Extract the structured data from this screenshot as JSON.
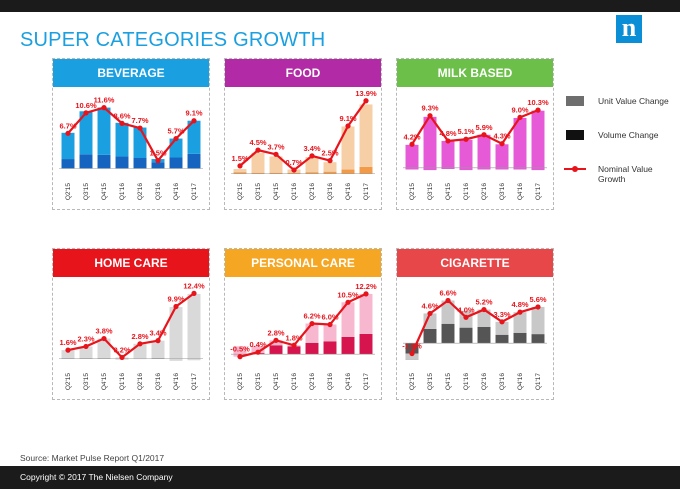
{
  "page_title": "SUPER CATEGORIES GROWTH",
  "logo_letter": "n",
  "source": "Source: Market Pulse Report Q1/2017",
  "footer": "Copyright © 2017 The Nielsen Company",
  "legend": {
    "unit_value": "Unit Value Change",
    "volume": "Volume Change",
    "nominal": "Nominal Value Growth"
  },
  "colors": {
    "title": "#1a9fe0",
    "growth_line": "#e8141c"
  },
  "chart_data": [
    {
      "type": "bar",
      "title": "BEVERAGE",
      "header_color": "#1a9fe0",
      "unit_color": "#1a9fe0",
      "volume_color": "#1565c0",
      "categories": [
        "Q2'15",
        "Q3'15",
        "Q4'15",
        "Q1'16",
        "Q2'16",
        "Q3'16",
        "Q4'16",
        "Q1'17"
      ],
      "series": [
        {
          "name": "Unit Value Change",
          "values": [
            5.0,
            8.2,
            9.0,
            6.4,
            5.8,
            0.6,
            3.6,
            6.3
          ]
        },
        {
          "name": "Volume Change",
          "values": [
            1.8,
            2.7,
            2.6,
            2.3,
            2.0,
            1.2,
            2.1,
            2.8
          ]
        },
        {
          "name": "Nominal Value Growth",
          "values": [
            6.7,
            10.6,
            11.6,
            8.6,
            7.7,
            1.5,
            5.7,
            9.1
          ]
        }
      ],
      "labels": [
        "6.7%",
        "10.6%",
        "11.6%",
        "8.6%",
        "7.7%",
        "1.5%",
        "5.7%",
        "9.1%"
      ],
      "ylim": [
        -2,
        14
      ]
    },
    {
      "type": "bar",
      "title": "FOOD",
      "header_color": "#b22aa5",
      "unit_color": "#f7cfa6",
      "volume_color": "#f29a47",
      "categories": [
        "Q2'15",
        "Q3'15",
        "Q4'15",
        "Q1'16",
        "Q2'16",
        "Q3'16",
        "Q4'16",
        "Q1'17"
      ],
      "series": [
        {
          "name": "Unit Value Change",
          "values": [
            0.6,
            3.8,
            3.1,
            0.6,
            2.9,
            1.8,
            8.2,
            11.9
          ]
        },
        {
          "name": "Volume Change",
          "values": [
            0.3,
            0.2,
            0.2,
            0.2,
            0.3,
            0.4,
            0.8,
            1.3
          ]
        },
        {
          "name": "Nominal Value Growth",
          "values": [
            1.5,
            4.5,
            3.7,
            0.7,
            3.4,
            2.5,
            9.1,
            13.9
          ]
        }
      ],
      "labels": [
        "1.5%",
        "4.5%",
        "3.7%",
        "0.7%",
        "3.4%",
        "2.5%",
        "9.1%",
        "13.9%"
      ],
      "ylim": [
        -1,
        15
      ]
    },
    {
      "type": "bar",
      "title": "MILK BASED",
      "header_color": "#6cc04a",
      "unit_color": "#e65ad8",
      "volume_color": "#8a1d8c",
      "categories": [
        "Q2'15",
        "Q3'15",
        "Q4'15",
        "Q1'16",
        "Q2'16",
        "Q3'16",
        "Q4'16",
        "Q1'17"
      ],
      "series": [
        {
          "name": "Unit Value Change",
          "values": [
            4.4,
            9.5,
            5.0,
            5.4,
            6.2,
            4.5,
            9.2,
            10.6
          ]
        },
        {
          "name": "Volume Change",
          "values": [
            -0.3,
            -0.4,
            -0.2,
            -0.4,
            -0.3,
            -0.3,
            -0.3,
            -0.4
          ]
        },
        {
          "name": "Nominal Value Growth",
          "values": [
            4.2,
            9.3,
            4.8,
            5.1,
            5.9,
            4.3,
            9.0,
            10.3
          ]
        }
      ],
      "labels": [
        "4.2%",
        "9.3%",
        "4.8%",
        "5.1%",
        "5.9%",
        "4.3%",
        "9.0%",
        "10.3%"
      ],
      "ylim": [
        -2,
        13
      ]
    },
    {
      "type": "bar",
      "title": "HOME CARE",
      "header_color": "#e8141c",
      "unit_color": "#d9d9d9",
      "volume_color": "#7a7a7a",
      "categories": [
        "Q2'15",
        "Q3'15",
        "Q4'15",
        "Q1'16",
        "Q2'16",
        "Q3'16",
        "Q4'16",
        "Q1'17"
      ],
      "series": [
        {
          "name": "Unit Value Change",
          "values": [
            1.5,
            2.2,
            3.7,
            0.4,
            2.9,
            3.4,
            10.2,
            12.6
          ]
        },
        {
          "name": "Volume Change",
          "values": [
            0.1,
            0.1,
            0.1,
            -0.2,
            -0.1,
            0.0,
            -0.4,
            -0.3
          ]
        },
        {
          "name": "Nominal Value Growth",
          "values": [
            1.6,
            2.3,
            3.8,
            0.2,
            2.8,
            3.4,
            9.9,
            12.4
          ]
        }
      ],
      "labels": [
        "1.6%",
        "2.3%",
        "3.8%",
        "0.2%",
        "2.8%",
        "3.4%",
        "9.9%",
        "12.4%"
      ],
      "ylim": [
        -2,
        14
      ]
    },
    {
      "type": "bar",
      "title": "PERSONAL CARE",
      "header_color": "#f5a623",
      "unit_color": "#f7b8cf",
      "volume_color": "#d6154f",
      "categories": [
        "Q2'15",
        "Q3'15",
        "Q4'15",
        "Q1'16",
        "Q2'16",
        "Q3'16",
        "Q4'16",
        "Q1'17"
      ],
      "series": [
        {
          "name": "Unit Value Change",
          "values": [
            -2.0,
            -1.4,
            1.0,
            0.2,
            3.9,
            3.4,
            7.0,
            8.1
          ]
        },
        {
          "name": "Volume Change",
          "values": [
            1.5,
            1.6,
            1.8,
            1.6,
            2.3,
            2.6,
            3.5,
            4.1
          ]
        },
        {
          "name": "Nominal Value Growth",
          "values": [
            -0.5,
            0.4,
            2.8,
            1.8,
            6.2,
            6.0,
            10.5,
            12.2
          ]
        }
      ],
      "labels": [
        "-0.5%",
        "0.4%",
        "2.8%",
        "1.8%",
        "6.2%",
        "6.0%",
        "10.5%",
        "12.2%"
      ],
      "ylim": [
        -3,
        14
      ]
    },
    {
      "type": "bar",
      "title": "CIGARETTE",
      "header_color": "#e8474a",
      "unit_color": "#c8c8c8",
      "volume_color": "#555555",
      "categories": [
        "Q2'15",
        "Q3'15",
        "Q4'15",
        "Q1'16",
        "Q2'16",
        "Q3'16",
        "Q4'16",
        "Q1'17"
      ],
      "series": [
        {
          "name": "Unit Value Change",
          "values": [
            1.0,
            2.4,
            3.6,
            2.6,
            2.7,
            2.0,
            3.2,
            4.2
          ]
        },
        {
          "name": "Volume Change",
          "values": [
            -2.6,
            2.2,
            3.0,
            2.4,
            2.5,
            1.3,
            1.6,
            1.4
          ]
        },
        {
          "name": "Nominal Value Growth",
          "values": [
            -1.6,
            4.6,
            6.6,
            4.0,
            5.2,
            3.3,
            4.8,
            5.6
          ]
        }
      ],
      "labels": [
        "-1.6%",
        "4.6%",
        "6.6%",
        "4.0%",
        "5.2%",
        "3.3%",
        "4.8%",
        "5.6%"
      ],
      "ylim": [
        -4,
        9
      ]
    }
  ]
}
